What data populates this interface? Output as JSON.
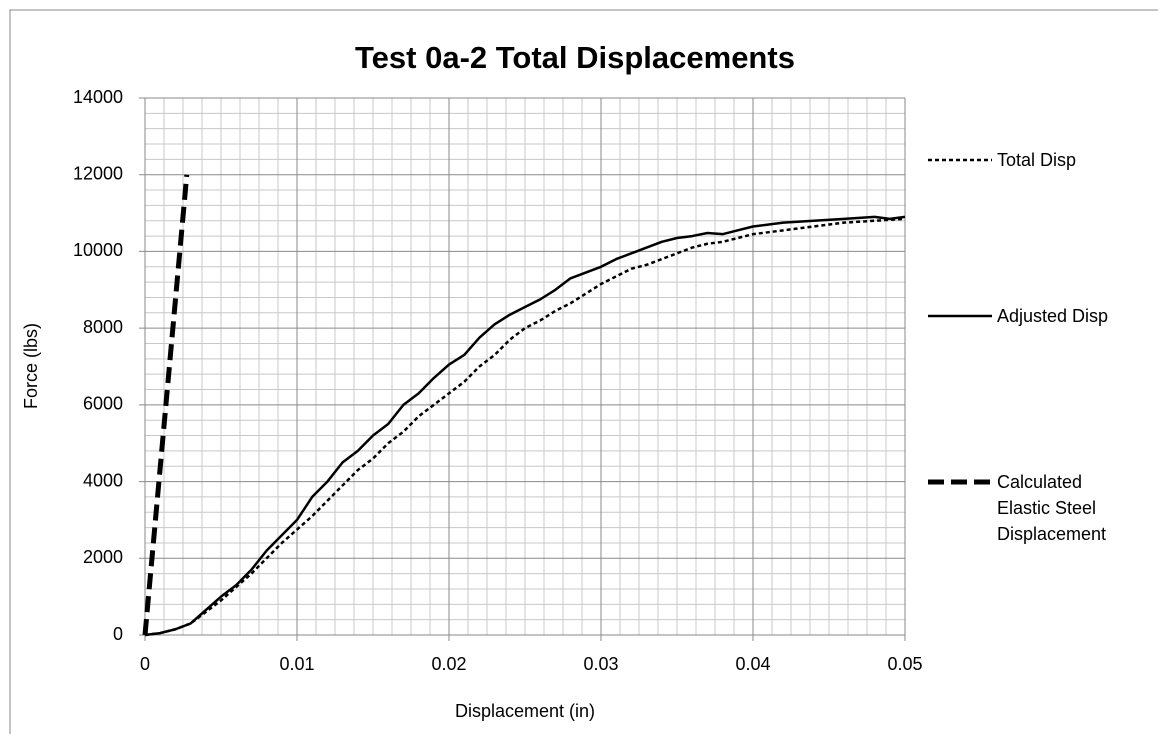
{
  "chart_data": {
    "type": "line",
    "title": "Test 0a-2 Total Displacements",
    "xlabel": "Displacement (in)",
    "ylabel": "Force (lbs)",
    "xlim": [
      0,
      0.05
    ],
    "xticks": [
      0,
      0.01,
      0.02,
      0.03,
      0.04,
      0.05
    ],
    "ylim": [
      0,
      14000
    ],
    "yticks": [
      0,
      2000,
      4000,
      6000,
      8000,
      10000,
      12000,
      14000
    ],
    "grid": true,
    "minor_grid": {
      "x": 8,
      "y": 5
    },
    "legend": "right",
    "series": [
      {
        "name": "Total Disp",
        "color": "#000000",
        "style": "dotted",
        "x": [
          0,
          0.001,
          0.002,
          0.003,
          0.004,
          0.005,
          0.006,
          0.007,
          0.008,
          0.009,
          0.01,
          0.011,
          0.012,
          0.013,
          0.014,
          0.015,
          0.016,
          0.017,
          0.018,
          0.019,
          0.02,
          0.021,
          0.022,
          0.023,
          0.024,
          0.025,
          0.026,
          0.027,
          0.028,
          0.029,
          0.03,
          0.031,
          0.032,
          0.033,
          0.034,
          0.035,
          0.036,
          0.037,
          0.038,
          0.039,
          0.04,
          0.042,
          0.044,
          0.046,
          0.048,
          0.05
        ],
        "values": [
          0,
          50,
          150,
          300,
          600,
          900,
          1250,
          1600,
          2000,
          2400,
          2750,
          3100,
          3500,
          3900,
          4300,
          4600,
          5000,
          5300,
          5700,
          6000,
          6300,
          6600,
          7000,
          7300,
          7700,
          8000,
          8200,
          8450,
          8650,
          8900,
          9150,
          9350,
          9550,
          9650,
          9800,
          9950,
          10100,
          10200,
          10250,
          10350,
          10450,
          10550,
          10650,
          10750,
          10800,
          10850
        ]
      },
      {
        "name": "Adjusted Disp",
        "color": "#000000",
        "style": "solid",
        "x": [
          0,
          0.001,
          0.002,
          0.003,
          0.004,
          0.005,
          0.006,
          0.007,
          0.008,
          0.009,
          0.01,
          0.011,
          0.012,
          0.013,
          0.014,
          0.015,
          0.016,
          0.017,
          0.018,
          0.019,
          0.02,
          0.021,
          0.022,
          0.023,
          0.024,
          0.025,
          0.026,
          0.027,
          0.028,
          0.029,
          0.03,
          0.031,
          0.032,
          0.033,
          0.034,
          0.035,
          0.036,
          0.037,
          0.038,
          0.039,
          0.04,
          0.042,
          0.044,
          0.046,
          0.048,
          0.049,
          0.05
        ],
        "values": [
          0,
          50,
          150,
          300,
          650,
          1000,
          1300,
          1700,
          2200,
          2600,
          3000,
          3600,
          4000,
          4500,
          4800,
          5200,
          5500,
          6000,
          6300,
          6700,
          7050,
          7300,
          7750,
          8100,
          8350,
          8550,
          8750,
          9000,
          9300,
          9450,
          9600,
          9800,
          9950,
          10100,
          10250,
          10350,
          10400,
          10480,
          10450,
          10550,
          10650,
          10750,
          10800,
          10850,
          10900,
          10850,
          10900
        ]
      },
      {
        "name": "Calculated Elastic Steel Displacement",
        "color": "#000000",
        "style": "dashed",
        "x": [
          0,
          0.00275
        ],
        "values": [
          0,
          12000
        ]
      }
    ]
  }
}
